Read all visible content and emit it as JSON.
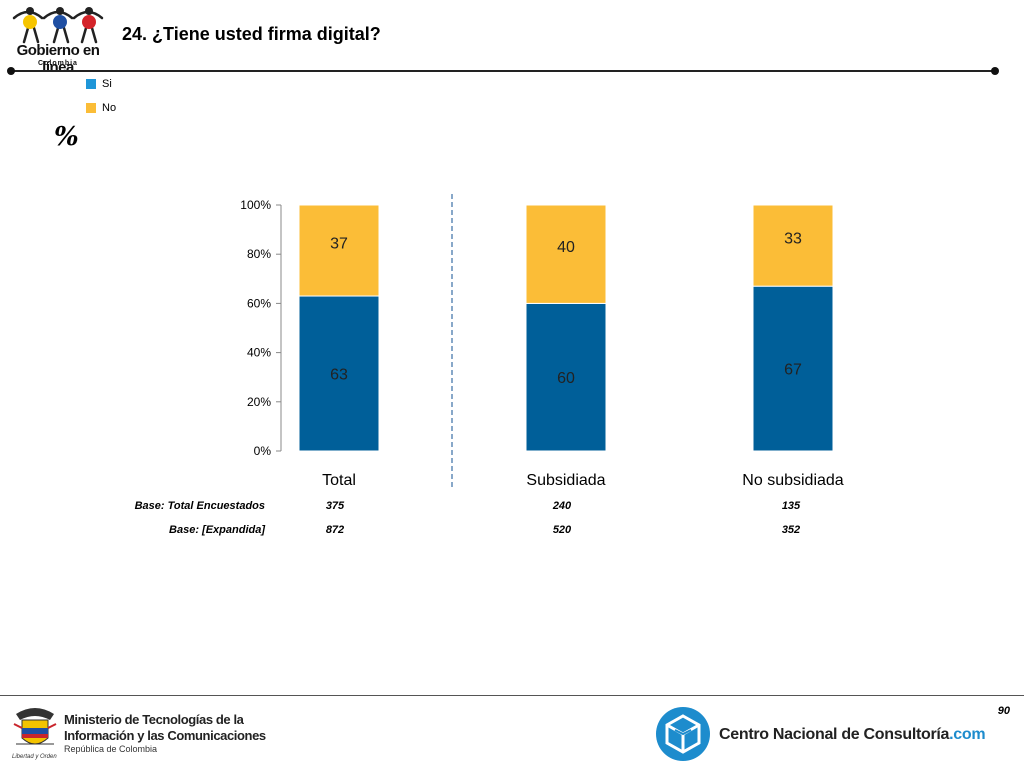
{
  "header": {
    "title": "24. ¿Tiene usted firma digital?",
    "logo_text": "Gobierno en línea",
    "logo_sub": "Colombia"
  },
  "legend": {
    "items": [
      {
        "label": "Si",
        "color": "#1f96d8"
      },
      {
        "label": "No",
        "color": "#fbbd37"
      }
    ]
  },
  "percent_symbol": "%",
  "chart_data": {
    "type": "bar",
    "stacked": true,
    "categories": [
      "Total",
      "Subsidiada",
      "No subsidiada"
    ],
    "series": [
      {
        "name": "Si",
        "values": [
          63,
          60,
          67
        ],
        "color": "#005f99"
      },
      {
        "name": "No",
        "values": [
          37,
          40,
          33
        ],
        "color": "#fbbd37"
      }
    ],
    "ylim": [
      0,
      100
    ],
    "yticks": [
      "0%",
      "20%",
      "40%",
      "60%",
      "80%",
      "100%"
    ],
    "legend_position": "top-left",
    "grid": false
  },
  "bases": [
    {
      "label": "Base: Total Encuestados",
      "values": [
        "375",
        "240",
        "135"
      ]
    },
    {
      "label": "Base: [Expandida]",
      "values": [
        "872",
        "520",
        "352"
      ]
    }
  ],
  "footer": {
    "page_number": "90",
    "ministry_line1": "Ministerio de Tecnologías de la",
    "ministry_line2": "Información y las Comunicaciones",
    "ministry_line3": "República de Colombia",
    "ministry_motto": "Libertad y Orden",
    "cnc_name": "Centro Nacional de Consultoría",
    "cnc_suffix": ".com"
  }
}
